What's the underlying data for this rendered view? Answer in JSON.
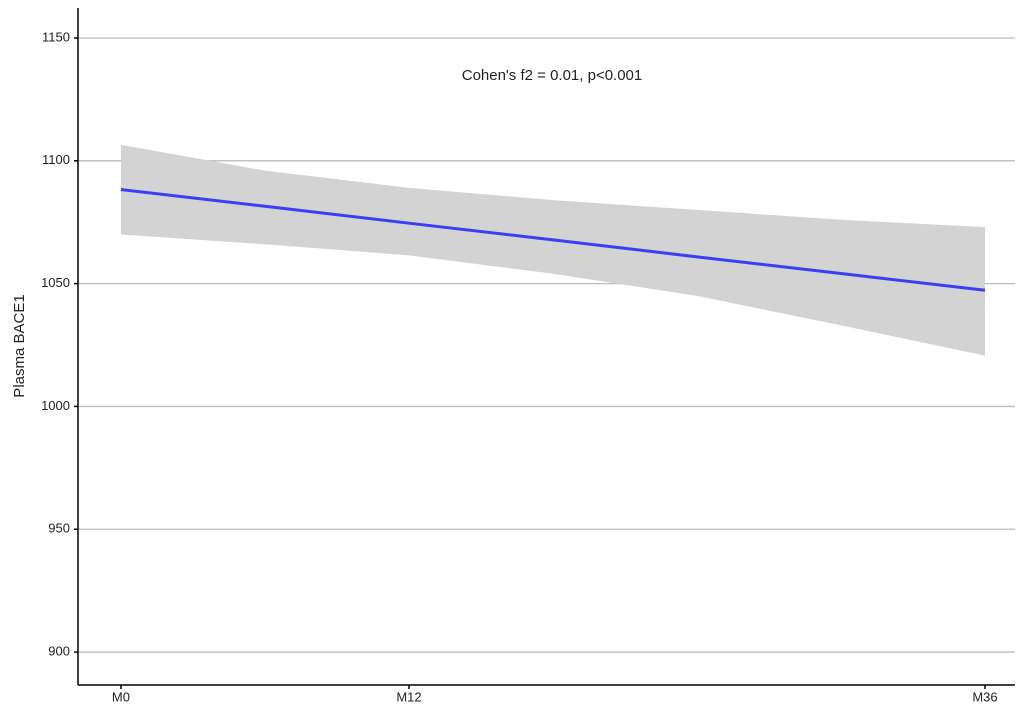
{
  "chart_data": {
    "type": "line",
    "y_label": "Plasma BACE1",
    "annotation": "Cohen's f2 = 0.01, p<0.001",
    "x": [
      0,
      6,
      12,
      18,
      24,
      30,
      36
    ],
    "xlim": [
      -1.79,
      37.25
    ],
    "xticks": [
      {
        "value": 0,
        "label": "M0"
      },
      {
        "value": 12,
        "label": "M12"
      },
      {
        "value": 36,
        "label": "M36"
      }
    ],
    "ylim": [
      886.6,
      1162.2
    ],
    "yticks": [
      900,
      950,
      1000,
      1050,
      1100,
      1150
    ],
    "grid": true,
    "fit": {
      "color": "#3b3ff2",
      "values": [
        1088.3,
        1081.5,
        1074.6,
        1067.8,
        1060.9,
        1054.1,
        1047.3
      ]
    },
    "ci": {
      "color": "#d3d3d3",
      "upper": [
        1106.5,
        1096,
        1089,
        1084,
        1080,
        1076,
        1073
      ],
      "lower": [
        1070,
        1066,
        1061.5,
        1054,
        1045,
        1033,
        1020.7
      ]
    }
  }
}
